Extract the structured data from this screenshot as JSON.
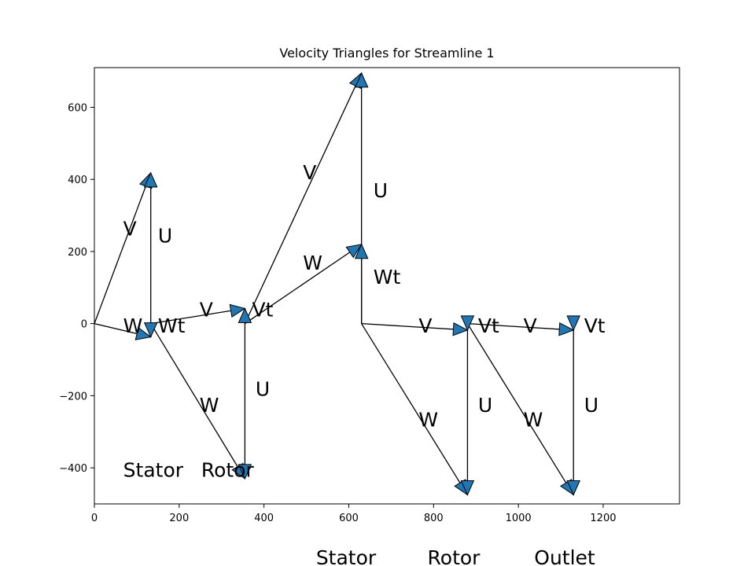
{
  "chart_data": {
    "type": "line",
    "title": "Velocity Triangles for Streamline 1",
    "xlabel": "",
    "ylabel": "",
    "xlim": [
      0,
      1380
    ],
    "ylim": [
      -500,
      710
    ],
    "xticks": [
      0,
      200,
      400,
      600,
      800,
      1000,
      1200
    ],
    "yticks": [
      -400,
      -200,
      0,
      200,
      400,
      600
    ],
    "xtick_labels": [
      "0",
      "200",
      "400",
      "600",
      "800",
      "1000",
      "1200"
    ],
    "ytick_labels": [
      "−400",
      "−200",
      "0",
      "200",
      "400",
      "600"
    ],
    "grid": false,
    "line_color": "#000000",
    "arrow_color": "#1f77b4",
    "vectors": [
      {
        "name": "V",
        "from": [
          0,
          0
        ],
        "to": [
          133,
          418
        ]
      },
      {
        "name": "W",
        "from": [
          0,
          0
        ],
        "to": [
          133,
          -37
        ]
      },
      {
        "name": "U",
        "from": [
          133,
          0
        ],
        "to": [
          133,
          418
        ]
      },
      {
        "name": "Wt",
        "from": [
          133,
          0
        ],
        "to": [
          133,
          -37
        ]
      },
      {
        "name": "V",
        "from": [
          133,
          0
        ],
        "to": [
          355,
          42
        ]
      },
      {
        "name": "W",
        "from": [
          133,
          0
        ],
        "to": [
          355,
          -430
        ]
      },
      {
        "name": "U",
        "from": [
          355,
          0
        ],
        "to": [
          355,
          -430
        ]
      },
      {
        "name": "Vt",
        "from": [
          355,
          0
        ],
        "to": [
          355,
          42
        ]
      },
      {
        "name": "V",
        "from": [
          355,
          0
        ],
        "to": [
          630,
          695
        ]
      },
      {
        "name": "W",
        "from": [
          355,
          0
        ],
        "to": [
          630,
          220
        ]
      },
      {
        "name": "U",
        "from": [
          630,
          0
        ],
        "to": [
          630,
          695
        ]
      },
      {
        "name": "Wt",
        "from": [
          630,
          0
        ],
        "to": [
          630,
          220
        ]
      },
      {
        "name": "V",
        "from": [
          630,
          0
        ],
        "to": [
          880,
          -18
        ]
      },
      {
        "name": "W",
        "from": [
          630,
          0
        ],
        "to": [
          880,
          -475
        ]
      },
      {
        "name": "U",
        "from": [
          880,
          0
        ],
        "to": [
          880,
          -475
        ]
      },
      {
        "name": "Vt",
        "from": [
          880,
          0
        ],
        "to": [
          880,
          -18
        ]
      },
      {
        "name": "V",
        "from": [
          880,
          0
        ],
        "to": [
          1130,
          -18
        ]
      },
      {
        "name": "W",
        "from": [
          880,
          0
        ],
        "to": [
          1130,
          -475
        ]
      },
      {
        "name": "U",
        "from": [
          1130,
          0
        ],
        "to": [
          1130,
          -475
        ]
      },
      {
        "name": "Vt",
        "from": [
          1130,
          0
        ],
        "to": [
          1130,
          -18
        ]
      }
    ],
    "labels": [
      {
        "text": "V",
        "x": 68,
        "y": 245
      },
      {
        "text": "U",
        "x": 150,
        "y": 225
      },
      {
        "text": "W",
        "x": 68,
        "y": -25
      },
      {
        "text": "Wt",
        "x": 150,
        "y": -25
      },
      {
        "text": "V",
        "x": 248,
        "y": 20
      },
      {
        "text": "Vt",
        "x": 372,
        "y": 20
      },
      {
        "text": "W",
        "x": 248,
        "y": -245
      },
      {
        "text": "U",
        "x": 380,
        "y": -200
      },
      {
        "text": "V",
        "x": 492,
        "y": 400
      },
      {
        "text": "U",
        "x": 658,
        "y": 350
      },
      {
        "text": "W",
        "x": 492,
        "y": 150
      },
      {
        "text": "Wt",
        "x": 658,
        "y": 110
      },
      {
        "text": "V",
        "x": 765,
        "y": -25
      },
      {
        "text": "Vt",
        "x": 905,
        "y": -25
      },
      {
        "text": "W",
        "x": 765,
        "y": -285
      },
      {
        "text": "U",
        "x": 905,
        "y": -245
      },
      {
        "text": "V",
        "x": 1012,
        "y": -25
      },
      {
        "text": "Vt",
        "x": 1155,
        "y": -25
      },
      {
        "text": "W",
        "x": 1012,
        "y": -285
      },
      {
        "text": "U",
        "x": 1155,
        "y": -245
      },
      {
        "text": "Stator",
        "x": 68,
        "y": -425,
        "big": true
      },
      {
        "text": "Rotor",
        "x": 252,
        "y": -425,
        "big": true
      }
    ],
    "stage_labels": [
      "Stator",
      "Rotor",
      "Outlet"
    ],
    "stage_positions": [
      440,
      577,
      718
    ]
  }
}
